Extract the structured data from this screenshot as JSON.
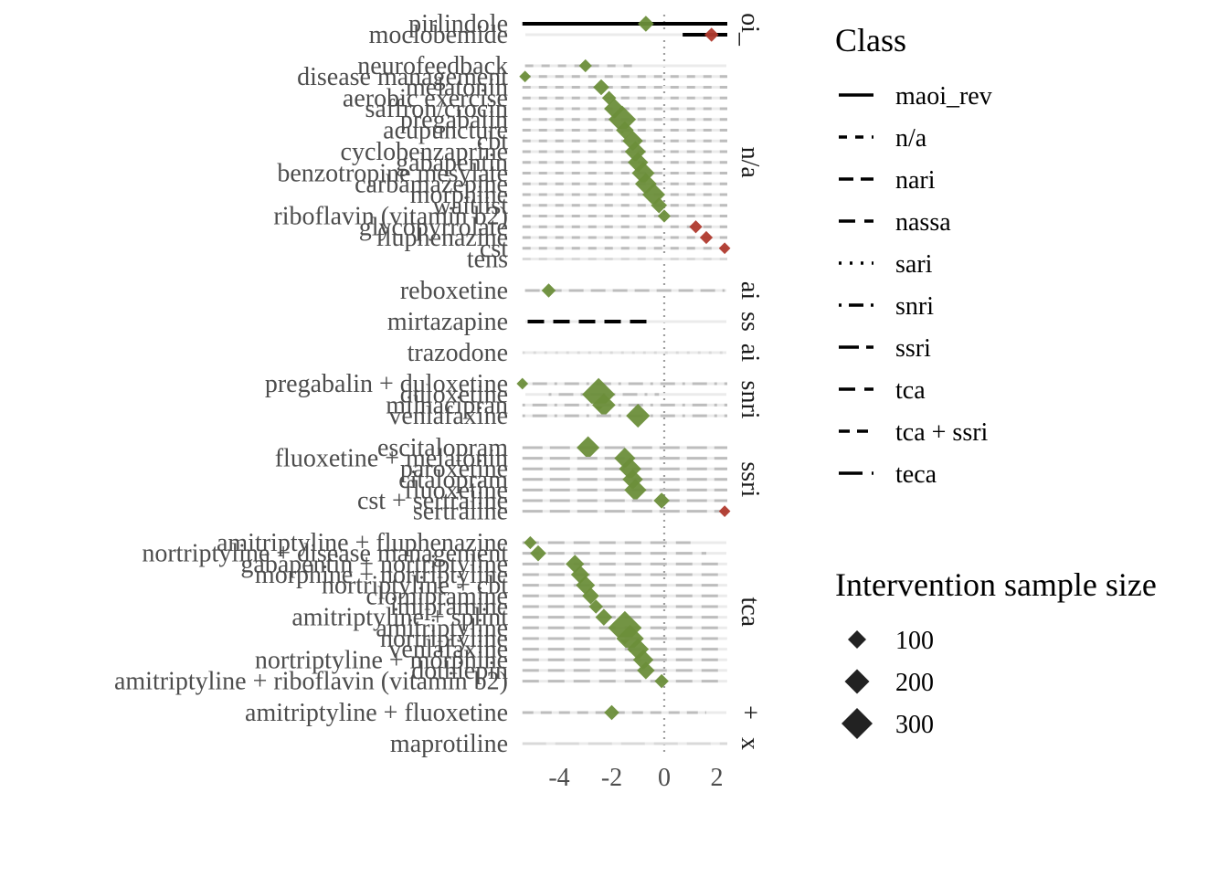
{
  "chart_data": {
    "type": "forest",
    "title": "",
    "xlabel": "",
    "ylabel": "",
    "x_ticks": [
      -4,
      -2,
      0,
      2
    ],
    "xlim": [
      -5.3,
      2.3
    ],
    "reference_line": 0,
    "colors": {
      "favourable": "#6b8e3a",
      "unfavourable": "#b03a2e",
      "interval": "#bdbdbd",
      "band": "#ebebeb"
    },
    "legend_class": {
      "title": "Class",
      "items": [
        "maoi_rev",
        "n/a",
        "nari",
        "nassa",
        "sari",
        "snri",
        "ssri",
        "tca",
        "tca + ssri",
        "teca"
      ]
    },
    "legend_size": {
      "title": "Intervention sample size",
      "items": [
        "100",
        "200",
        "300"
      ]
    },
    "panels": [
      {
        "strip": "oi_",
        "class": "maoi_rev",
        "rows": [
          {
            "label": "pirlindole",
            "est": -0.7,
            "lo": -5.4,
            "hi": 2.4,
            "n": 60
          },
          {
            "label": "moclobemide",
            "est": 1.8,
            "lo": 0.7,
            "hi": 2.4,
            "n": 40
          }
        ]
      },
      {
        "strip": "n/a",
        "class": "n/a",
        "rows": [
          {
            "label": "neurofeedback",
            "est": -3.0,
            "lo": -5.3,
            "hi": -1.1,
            "n": 30
          },
          {
            "label": "disease management",
            "est": -5.3,
            "lo": -5.4,
            "hi": 2.4,
            "n": 20
          },
          {
            "label": "melatonin",
            "est": -2.4,
            "lo": -5.4,
            "hi": 2.4,
            "n": 60
          },
          {
            "label": "aerobic exercise",
            "est": -2.1,
            "lo": -5.4,
            "hi": 2.4,
            "n": 40
          },
          {
            "label": "saffron/crocin",
            "est": -1.9,
            "lo": -5.4,
            "hi": 2.4,
            "n": 120
          },
          {
            "label": "pregabalin",
            "est": -1.6,
            "lo": -5.4,
            "hi": 2.4,
            "n": 260
          },
          {
            "label": "acupuncture",
            "est": -1.5,
            "lo": -5.4,
            "hi": 2.4,
            "n": 80
          },
          {
            "label": "cbt",
            "est": -1.2,
            "lo": -5.4,
            "hi": 2.4,
            "n": 120
          },
          {
            "label": "cyclobenzaprine",
            "est": -1.1,
            "lo": -5.4,
            "hi": 2.4,
            "n": 130
          },
          {
            "label": "gabapentin",
            "est": -1.0,
            "lo": -5.4,
            "hi": 2.4,
            "n": 120
          },
          {
            "label": "benzotropine mesylate",
            "est": -0.8,
            "lo": -5.4,
            "hi": 2.4,
            "n": 160
          },
          {
            "label": "carbamazepine",
            "est": -0.7,
            "lo": -5.4,
            "hi": 2.4,
            "n": 140
          },
          {
            "label": "morphine",
            "est": -0.4,
            "lo": -5.4,
            "hi": 2.4,
            "n": 160
          },
          {
            "label": "waitlist",
            "est": -0.2,
            "lo": -5.4,
            "hi": 2.4,
            "n": 60
          },
          {
            "label": "riboflavin (vitamin b2)",
            "est": 0.0,
            "lo": -5.4,
            "hi": 2.4,
            "n": 30
          },
          {
            "label": "glycopyrrolate",
            "est": 1.2,
            "lo": -5.4,
            "hi": 2.4,
            "n": 30
          },
          {
            "label": "fluphenazine",
            "est": 1.6,
            "lo": -5.4,
            "hi": 2.4,
            "n": 30
          },
          {
            "label": "cst",
            "est": 2.3,
            "lo": -5.4,
            "hi": 2.4,
            "n": 20
          },
          {
            "label": "tens",
            "est": null,
            "lo": -5.4,
            "hi": 2.4,
            "n": 0
          }
        ]
      },
      {
        "strip": "ai",
        "class": "nari",
        "rows": [
          {
            "label": "reboxetine",
            "est": -4.4,
            "lo": -5.3,
            "hi": 2.3,
            "n": 40
          }
        ]
      },
      {
        "strip": "ss",
        "class": "nassa",
        "rows": [
          {
            "label": "mirtazapine",
            "est": null,
            "lo": -5.2,
            "hi": -0.6,
            "n": 0
          }
        ]
      },
      {
        "strip": "ai",
        "class": "sari",
        "rows": [
          {
            "label": "trazodone",
            "est": null,
            "lo": -5.4,
            "hi": 2.4,
            "n": 0
          }
        ]
      },
      {
        "strip": "snri",
        "class": "snri",
        "rows": [
          {
            "label": "pregabalin + duloxetine",
            "est": -5.4,
            "lo": -5.4,
            "hi": 2.4,
            "n": 20
          },
          {
            "label": "duloxetine",
            "est": -2.5,
            "lo": -4.4,
            "hi": -0.2,
            "n": 400
          },
          {
            "label": "milnacipran",
            "est": -2.3,
            "lo": -5.4,
            "hi": 2.4,
            "n": 170
          },
          {
            "label": "venlafaxine",
            "est": -1.0,
            "lo": -5.4,
            "hi": 2.4,
            "n": 180
          }
        ]
      },
      {
        "strip": "ssri",
        "class": "ssri",
        "rows": [
          {
            "label": "escitalopram",
            "est": -2.9,
            "lo": -5.4,
            "hi": 2.4,
            "n": 160
          },
          {
            "label": "fluoxetine + melatonin",
            "est": -1.5,
            "lo": -5.4,
            "hi": 2.4,
            "n": 130
          },
          {
            "label": "paroxetine",
            "est": -1.3,
            "lo": -5.4,
            "hi": 2.4,
            "n": 150
          },
          {
            "label": "citalopram",
            "est": -1.2,
            "lo": -5.4,
            "hi": 2.4,
            "n": 120
          },
          {
            "label": "fluoxetine",
            "est": -1.1,
            "lo": -5.4,
            "hi": 2.4,
            "n": 150
          },
          {
            "label": "cst + sertraline",
            "est": -0.1,
            "lo": -5.4,
            "hi": 2.4,
            "n": 60
          },
          {
            "label": "sertraline",
            "est": 2.3,
            "lo": -5.4,
            "hi": 2.4,
            "n": 20
          }
        ]
      },
      {
        "strip": "tca",
        "class": "tca",
        "rows": [
          {
            "label": "amitriptyline + fluphenazine",
            "est": -5.1,
            "lo": -5.4,
            "hi": 1.0,
            "n": 30
          },
          {
            "label": "nortriptyline + disease management",
            "est": -4.8,
            "lo": -5.4,
            "hi": 1.6,
            "n": 60
          },
          {
            "label": "gabapentin + nortriptyline",
            "est": -3.4,
            "lo": -5.4,
            "hi": 2.4,
            "n": 90
          },
          {
            "label": "morphine + nortriptyline",
            "est": -3.2,
            "lo": -5.4,
            "hi": 2.4,
            "n": 90
          },
          {
            "label": "nortriptyline + cbt",
            "est": -3.0,
            "lo": -5.4,
            "hi": 2.4,
            "n": 100
          },
          {
            "label": "clomipramine",
            "est": -2.8,
            "lo": -5.4,
            "hi": 2.4,
            "n": 70
          },
          {
            "label": "imipramine",
            "est": -2.6,
            "lo": -5.4,
            "hi": 2.4,
            "n": 40
          },
          {
            "label": "amitriptyline + splint",
            "est": -2.3,
            "lo": -5.4,
            "hi": 2.4,
            "n": 70
          },
          {
            "label": "amitriptyline",
            "est": -1.5,
            "lo": -5.4,
            "hi": 2.4,
            "n": 420
          },
          {
            "label": "nortriptyline",
            "est": -1.3,
            "lo": -5.4,
            "hi": 2.4,
            "n": 260
          },
          {
            "label": "venlafaxine",
            "est": -1.0,
            "lo": -5.4,
            "hi": 2.4,
            "n": 140
          },
          {
            "label": "nortriptyline + morphine",
            "est": -0.8,
            "lo": -5.4,
            "hi": 2.4,
            "n": 120
          },
          {
            "label": "dothiepin",
            "est": -0.7,
            "lo": -5.4,
            "hi": 2.4,
            "n": 80
          },
          {
            "label": "amitriptyline + riboflavin (vitamin b2)",
            "est": -0.1,
            "lo": -5.4,
            "hi": 2.4,
            "n": 40
          }
        ]
      },
      {
        "strip": "+",
        "class": "tca + ssri",
        "rows": [
          {
            "label": "amitriptyline + fluoxetine",
            "est": -2.0,
            "lo": -5.4,
            "hi": 1.6,
            "n": 50
          }
        ]
      },
      {
        "strip": "x",
        "class": "teca",
        "rows": [
          {
            "label": "maprotiline",
            "est": null,
            "lo": -5.4,
            "hi": 2.4,
            "n": 0
          }
        ]
      }
    ]
  }
}
